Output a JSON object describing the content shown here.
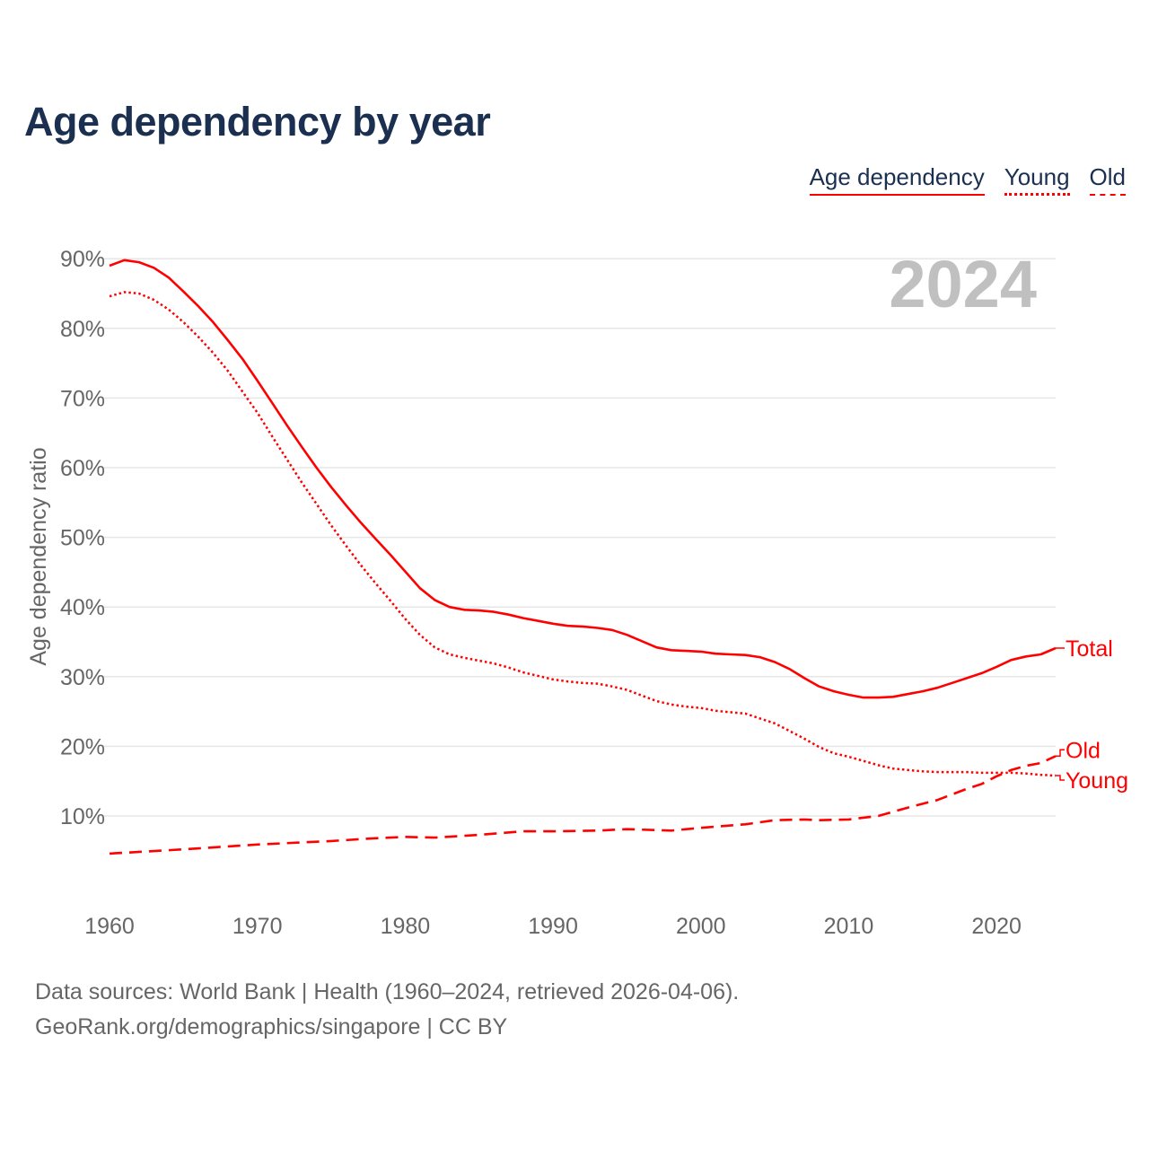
{
  "title": "Age dependency by year",
  "legend": [
    "Age dependency",
    "Young",
    "Old"
  ],
  "footer": {
    "line1": "Data sources: World Bank | Health (1960–2024, retrieved 2026-04-06).",
    "line2": "GeoRank.org/demographics/singapore | CC BY"
  },
  "colors": {
    "series": "#ff0000",
    "title": "#1b3050",
    "grid": "#e6e6e6",
    "watermark": "#c0c0c0"
  },
  "chart_data": {
    "type": "line",
    "title": "Age dependency by year",
    "xlabel": "",
    "ylabel": "Age dependency ratio",
    "xlim": [
      1960,
      2024
    ],
    "ylim": [
      0,
      90
    ],
    "xticks": [
      1960,
      1970,
      1980,
      1990,
      2000,
      2010,
      2020
    ],
    "yticks": [
      10,
      20,
      30,
      40,
      50,
      60,
      70,
      80,
      90
    ],
    "ytick_labels": [
      "10%",
      "20%",
      "30%",
      "40%",
      "50%",
      "60%",
      "70%",
      "80%",
      "90%"
    ],
    "grid": true,
    "year_label": "2024",
    "series": [
      {
        "name": "Total",
        "legend": "Age dependency",
        "style": "solid",
        "x": [
          1960,
          1961,
          1962,
          1963,
          1964,
          1965,
          1966,
          1967,
          1968,
          1969,
          1970,
          1971,
          1972,
          1973,
          1974,
          1975,
          1976,
          1977,
          1978,
          1979,
          1980,
          1981,
          1982,
          1983,
          1984,
          1985,
          1986,
          1987,
          1988,
          1989,
          1990,
          1991,
          1992,
          1993,
          1994,
          1995,
          1996,
          1997,
          1998,
          1999,
          2000,
          2001,
          2002,
          2003,
          2004,
          2005,
          2006,
          2007,
          2008,
          2009,
          2010,
          2011,
          2012,
          2013,
          2014,
          2015,
          2016,
          2017,
          2018,
          2019,
          2020,
          2021,
          2022,
          2023,
          2024
        ],
        "y": [
          89.0,
          89.8,
          89.5,
          88.7,
          87.3,
          85.3,
          83.2,
          80.9,
          78.3,
          75.6,
          72.5,
          69.3,
          66.1,
          63.0,
          60.0,
          57.2,
          54.6,
          52.1,
          49.8,
          47.5,
          45.1,
          42.7,
          41.0,
          40.0,
          39.6,
          39.5,
          39.3,
          38.9,
          38.4,
          38.0,
          37.6,
          37.3,
          37.2,
          37.0,
          36.7,
          36.0,
          35.1,
          34.2,
          33.8,
          33.7,
          33.6,
          33.3,
          33.2,
          33.1,
          32.8,
          32.1,
          31.1,
          29.8,
          28.6,
          27.9,
          27.4,
          27.0,
          27.0,
          27.1,
          27.5,
          27.9,
          28.4,
          29.1,
          29.8,
          30.5,
          31.4,
          32.4,
          32.9,
          33.2,
          34.1
        ]
      },
      {
        "name": "Young",
        "legend": "Young",
        "style": "dotted",
        "x": [
          1960,
          1961,
          1962,
          1963,
          1964,
          1965,
          1966,
          1967,
          1968,
          1969,
          1970,
          1971,
          1972,
          1973,
          1974,
          1975,
          1976,
          1977,
          1978,
          1979,
          1980,
          1981,
          1982,
          1983,
          1984,
          1985,
          1986,
          1987,
          1988,
          1989,
          1990,
          1991,
          1992,
          1993,
          1994,
          1995,
          1996,
          1997,
          1998,
          1999,
          2000,
          2001,
          2002,
          2003,
          2004,
          2005,
          2006,
          2007,
          2008,
          2009,
          2010,
          2011,
          2012,
          2013,
          2014,
          2015,
          2016,
          2017,
          2018,
          2019,
          2020,
          2021,
          2022,
          2023,
          2024
        ],
        "y": [
          84.6,
          85.2,
          85.0,
          84.1,
          82.7,
          80.9,
          78.8,
          76.5,
          73.9,
          70.9,
          67.9,
          64.5,
          61.2,
          57.9,
          54.8,
          51.7,
          48.8,
          46.0,
          43.4,
          40.9,
          38.3,
          36.0,
          34.2,
          33.2,
          32.7,
          32.3,
          31.9,
          31.3,
          30.6,
          30.1,
          29.6,
          29.3,
          29.1,
          29.0,
          28.6,
          28.1,
          27.3,
          26.5,
          26.0,
          25.7,
          25.5,
          25.1,
          24.9,
          24.7,
          24.0,
          23.3,
          22.2,
          21.1,
          19.9,
          19.0,
          18.5,
          17.9,
          17.3,
          16.8,
          16.6,
          16.4,
          16.3,
          16.3,
          16.3,
          16.2,
          16.2,
          16.2,
          16.1,
          15.9,
          15.8
        ]
      },
      {
        "name": "Old",
        "legend": "Old",
        "style": "dashed",
        "x": [
          1960,
          1965,
          1970,
          1975,
          1978,
          1980,
          1982,
          1985,
          1988,
          1990,
          1993,
          1995,
          1998,
          2000,
          2003,
          2005,
          2007,
          2008,
          2010,
          2012,
          2014,
          2016,
          2018,
          2019,
          2020,
          2021,
          2022,
          2023,
          2024
        ],
        "y": [
          4.6,
          5.2,
          5.9,
          6.4,
          6.8,
          7.0,
          6.9,
          7.3,
          7.8,
          7.8,
          7.9,
          8.1,
          7.9,
          8.3,
          8.8,
          9.4,
          9.5,
          9.4,
          9.5,
          10.0,
          11.2,
          12.3,
          13.9,
          14.6,
          15.7,
          16.6,
          17.2,
          17.6,
          18.6
        ]
      }
    ],
    "end_labels": [
      "Total",
      "Old",
      "Young"
    ]
  }
}
